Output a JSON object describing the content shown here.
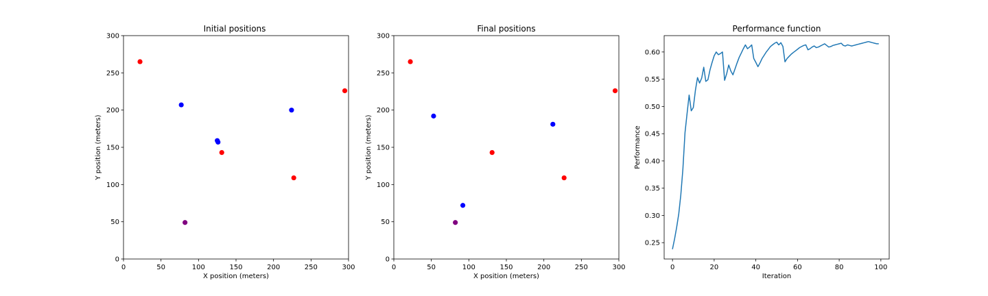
{
  "chart_data": [
    {
      "type": "scatter",
      "title": "Initial positions",
      "xlabel": "X position (meters)",
      "ylabel": "Y position (meters)",
      "xlim": [
        0,
        300
      ],
      "ylim": [
        0,
        300
      ],
      "xticks": [
        0,
        50,
        100,
        150,
        200,
        250,
        300
      ],
      "yticks": [
        0,
        50,
        100,
        150,
        200,
        250,
        300
      ],
      "grid": false,
      "series": [
        {
          "color": "#ff0000",
          "points": [
            [
              22,
              265
            ],
            [
              131,
              143
            ],
            [
              227,
              109
            ],
            [
              295,
              226
            ]
          ]
        },
        {
          "color": "#0000ff",
          "points": [
            [
              77,
              207
            ],
            [
              125,
              159
            ],
            [
              126,
              157
            ],
            [
              224,
              200
            ]
          ]
        },
        {
          "color": "#800080",
          "points": [
            [
              82,
              49
            ]
          ]
        }
      ]
    },
    {
      "type": "scatter",
      "title": "Final positions",
      "xlabel": "X position (meters)",
      "ylabel": "Y position (meters)",
      "xlim": [
        0,
        300
      ],
      "ylim": [
        0,
        300
      ],
      "xticks": [
        0,
        50,
        100,
        150,
        200,
        250,
        300
      ],
      "yticks": [
        0,
        50,
        100,
        150,
        200,
        250,
        300
      ],
      "grid": false,
      "series": [
        {
          "color": "#ff0000",
          "points": [
            [
              22,
              265
            ],
            [
              131,
              143
            ],
            [
              227,
              109
            ],
            [
              295,
              226
            ]
          ]
        },
        {
          "color": "#0000ff",
          "points": [
            [
              53,
              192
            ],
            [
              92,
              72
            ],
            [
              212,
              181
            ]
          ]
        },
        {
          "color": "#800080",
          "points": [
            [
              82,
              49
            ]
          ]
        }
      ]
    },
    {
      "type": "line",
      "title": "Performance function",
      "xlabel": "Iteration",
      "ylabel": "Performance",
      "xlim": [
        -4,
        104
      ],
      "ylim": [
        0.22,
        0.63
      ],
      "xticks": [
        0,
        20,
        40,
        60,
        80,
        100
      ],
      "yticks": [
        0.25,
        0.3,
        0.35,
        0.4,
        0.45,
        0.5,
        0.55,
        0.6
      ],
      "grid": false,
      "series": [
        {
          "color": "#1f77b4",
          "x": [
            0,
            1,
            2,
            3,
            4,
            5,
            6,
            7,
            8,
            9,
            10,
            11,
            12,
            13,
            14,
            15,
            16,
            17,
            18,
            19,
            20,
            21,
            22,
            23,
            24,
            25,
            26,
            27,
            28,
            29,
            30,
            31,
            32,
            33,
            34,
            35,
            36,
            37,
            38,
            39,
            40,
            41,
            42,
            43,
            44,
            45,
            46,
            47,
            48,
            49,
            50,
            51,
            52,
            53,
            54,
            55,
            56,
            57,
            58,
            59,
            60,
            61,
            62,
            63,
            64,
            65,
            66,
            67,
            68,
            69,
            70,
            71,
            72,
            73,
            74,
            75,
            76,
            77,
            78,
            79,
            80,
            81,
            82,
            83,
            84,
            85,
            86,
            87,
            88,
            89,
            90,
            91,
            92,
            93,
            94,
            95,
            96,
            97,
            98,
            99
          ],
          "y": [
            0.238,
            0.257,
            0.278,
            0.303,
            0.338,
            0.385,
            0.452,
            0.487,
            0.521,
            0.492,
            0.498,
            0.53,
            0.553,
            0.543,
            0.552,
            0.572,
            0.546,
            0.549,
            0.567,
            0.581,
            0.593,
            0.6,
            0.595,
            0.597,
            0.6,
            0.548,
            0.56,
            0.576,
            0.565,
            0.558,
            0.569,
            0.58,
            0.59,
            0.598,
            0.606,
            0.613,
            0.606,
            0.609,
            0.613,
            0.588,
            0.581,
            0.573,
            0.58,
            0.588,
            0.594,
            0.6,
            0.605,
            0.61,
            0.613,
            0.616,
            0.618,
            0.613,
            0.617,
            0.61,
            0.582,
            0.588,
            0.592,
            0.596,
            0.599,
            0.602,
            0.605,
            0.608,
            0.61,
            0.612,
            0.613,
            0.604,
            0.606,
            0.609,
            0.611,
            0.608,
            0.609,
            0.611,
            0.613,
            0.615,
            0.612,
            0.609,
            0.61,
            0.612,
            0.613,
            0.614,
            0.615,
            0.616,
            0.612,
            0.611,
            0.613,
            0.612,
            0.611,
            0.612,
            0.613,
            0.614,
            0.615,
            0.616,
            0.617,
            0.618,
            0.619,
            0.618,
            0.617,
            0.616,
            0.615,
            0.615
          ]
        }
      ]
    }
  ]
}
